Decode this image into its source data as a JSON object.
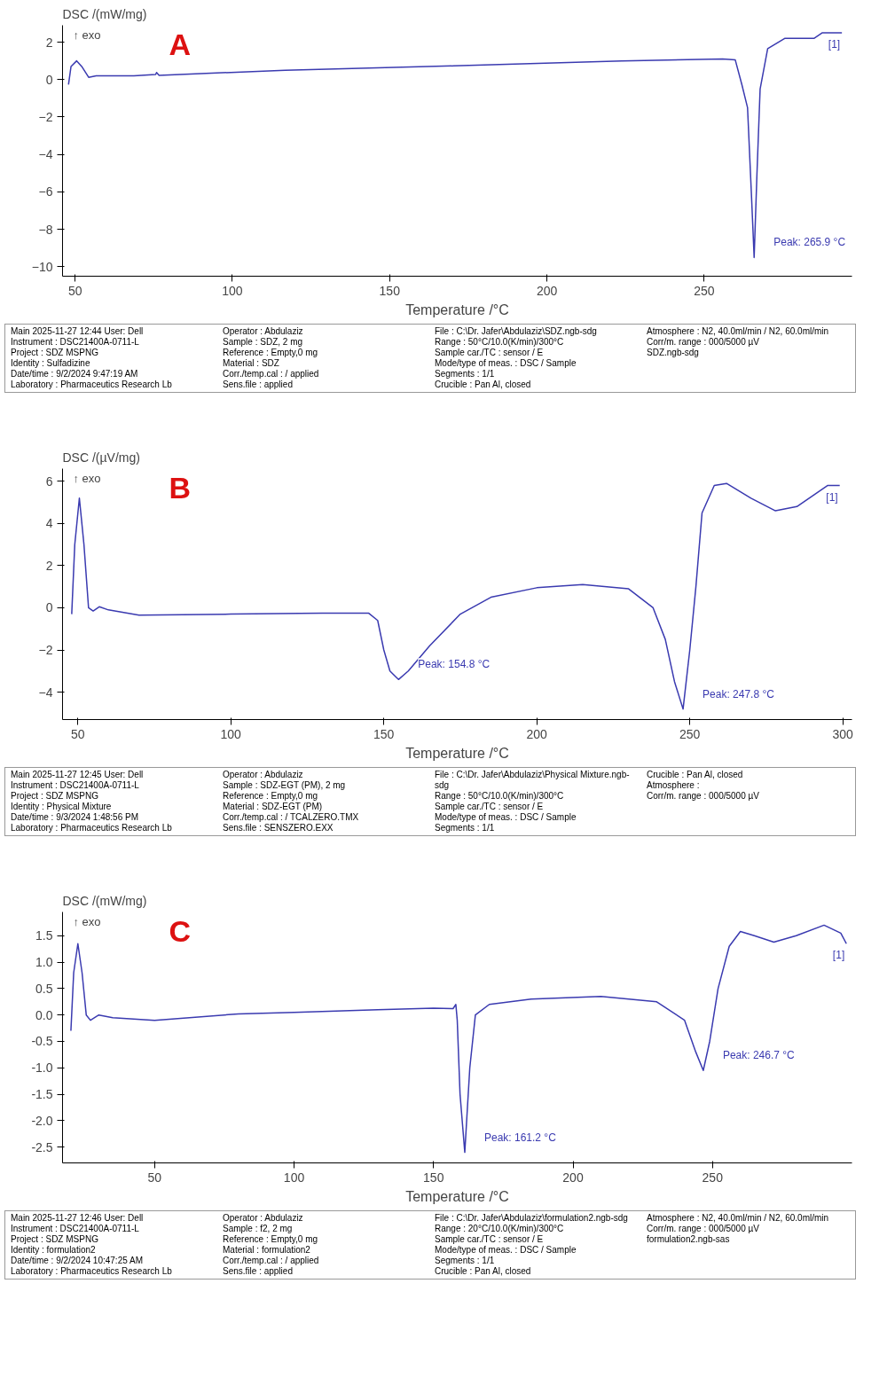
{
  "chart_data": [
    {
      "type": "line",
      "title": "A",
      "ylabel": "DSC /(mW/mg)",
      "xlabel": "Temperature /°C",
      "series": [
        {
          "color": "#3a3ab0",
          "x": [
            47.9,
            48.7,
            50.5,
            52.1,
            54.3,
            56.7,
            68.7,
            75.6,
            75.9,
            76.7,
            116.8,
            170.3,
            223.8,
            255.9,
            259.9,
            262.0,
            263.8,
            265.0,
            265.9,
            266.8,
            267.8,
            270.2,
            275.6,
            284.9,
            287.6,
            293.8
          ],
          "values": [
            -0.27,
            0.7,
            1.0,
            0.7,
            0.12,
            0.2,
            0.2,
            0.27,
            0.38,
            0.23,
            0.5,
            0.73,
            1.0,
            1.1,
            1.05,
            -0.27,
            -1.5,
            -6,
            -9.5,
            -5,
            -0.5,
            1.65,
            2.2,
            2.2,
            2.5,
            2.5
          ]
        }
      ],
      "xlim": [
        46,
        297
      ],
      "xticks": [
        50,
        100,
        150,
        200,
        250
      ],
      "ylim": [
        -10.5,
        2.9
      ],
      "yticks": [
        2,
        0,
        -2,
        -4,
        -6,
        -8,
        -10
      ],
      "grid": false,
      "annotations": [
        "↑ exo",
        {
          "text": "Peak: 265.9 °C",
          "x": 265.9,
          "y": -9.5
        },
        {
          "text": "[1]",
          "x": 293.8,
          "y": 2.5
        },
        "Main 2025-11-27 12:44 User: Dell",
        "Instrument : DSC21400A-0711-L",
        "Project : SDZ MSPNG",
        "Identity : Sulfadizine",
        "Date/time : 9/2/2024 9:47:19 AM",
        "Laboratory : Pharmaceutics Research Lb",
        "Operator : Abdulaziz",
        "Sample : SDZ, 2 mg",
        "Reference : Empty,0 mg",
        "Material : SDZ",
        "Corr./temp.cal : / applied",
        "Sens.file : applied",
        "File : C:\\Dr. Jafer\\Abdulaziz\\SDZ.ngb-sdg",
        "Range : 50°C/10.0(K/min)/300°C",
        "Sample car./TC : sensor / E",
        "Mode/type of meas. : DSC / Sample",
        "Segments : 1/1",
        "Crucible : Pan Al, closed",
        "Atmosphere : N2, 40.0ml/min / N2, 60.0ml/min",
        "Corr/m. range : 000/5000 µV",
        "SDZ.ngb-sdg"
      ]
    },
    {
      "type": "line",
      "title": "B",
      "ylabel": "DSC /(µV/mg)",
      "xlabel": "Temperature /°C",
      "series": [
        {
          "color": "#3a3ab0",
          "x": [
            48,
            49,
            50.5,
            52,
            53.5,
            55,
            57,
            60,
            70,
            100,
            130,
            145,
            148,
            150,
            152,
            154.8,
            158,
            165,
            175,
            185,
            200,
            215,
            230,
            238,
            242,
            245,
            247.8,
            250,
            252,
            254,
            258,
            262,
            270,
            278,
            285,
            295,
            299
          ],
          "values": [
            -0.3,
            3,
            5.2,
            3,
            0,
            -0.15,
            0.05,
            -0.1,
            -0.35,
            -0.3,
            -0.25,
            -0.25,
            -0.6,
            -2,
            -3,
            -3.4,
            -3,
            -1.8,
            -0.3,
            0.5,
            0.95,
            1.1,
            0.9,
            0,
            -1.5,
            -3.5,
            -4.8,
            -2,
            1,
            4.5,
            5.8,
            5.9,
            5.2,
            4.6,
            4.8,
            5.8,
            5.8
          ]
        }
      ],
      "xlim": [
        45,
        303
      ],
      "xticks": [
        50,
        100,
        150,
        200,
        250,
        300
      ],
      "ylim": [
        -5.3,
        6.6
      ],
      "yticks": [
        6,
        4,
        2,
        0,
        -2,
        -4
      ],
      "grid": false,
      "annotations": [
        "↑ exo",
        {
          "text": "Peak: 154.8 °C",
          "x": 154.8,
          "y": -3.4
        },
        {
          "text": "Peak: 247.8 °C",
          "x": 247.8,
          "y": -4.8
        },
        {
          "text": "[1]",
          "x": 299,
          "y": 5.8
        },
        "Main 2025-11-27 12:45 User: Dell",
        "Instrument : DSC21400A-0711-L",
        "Project : SDZ MSPNG",
        "Identity : Physical Mixture",
        "Date/time : 9/3/2024 1:48:56 PM",
        "Laboratory : Pharmaceutics Research Lb",
        "Operator : Abdulaziz",
        "Sample : SDZ-EGT (PM), 2 mg",
        "Reference : Empty,0 mg",
        "Material : SDZ-EGT (PM)",
        "Corr./temp.cal : / TCALZERO.TMX",
        "Sens.file : SENSZERO.EXX",
        "File : C:\\Dr. Jafer\\Abdulaziz\\Physical Mixture.ngb-sdg",
        "Range : 50°C/10.0(K/min)/300°C",
        "Sample car./TC : sensor / E",
        "Mode/type of meas. : DSC / Sample",
        "Segments : 1/1",
        "Crucible : Pan Al, closed",
        "Atmosphere :",
        "Corr/m. range : 000/5000 µV"
      ]
    },
    {
      "type": "line",
      "title": "C",
      "ylabel": "DSC /(mW/mg)",
      "xlabel": "Temperature /°C",
      "series": [
        {
          "color": "#3a3ab0",
          "x": [
            20,
            21,
            22.5,
            24,
            25.5,
            27,
            30,
            35,
            50,
            80,
            100,
            130,
            150,
            157,
            158,
            158.5,
            159.5,
            161.2,
            163,
            165,
            170,
            185,
            210,
            230,
            240,
            244,
            246.7,
            249,
            252,
            256,
            260,
            265,
            272,
            280,
            290,
            296,
            298
          ],
          "values": [
            -0.3,
            0.8,
            1.35,
            0.8,
            0,
            -0.1,
            0,
            -0.05,
            -0.1,
            0.02,
            0.05,
            0.1,
            0.13,
            0.12,
            0.2,
            -0.1,
            -1.5,
            -2.6,
            -1,
            0,
            0.2,
            0.3,
            0.35,
            0.25,
            -0.1,
            -0.7,
            -1.05,
            -0.5,
            0.5,
            1.3,
            1.58,
            1.5,
            1.38,
            1.5,
            1.7,
            1.55,
            1.35
          ]
        }
      ],
      "xlim": [
        17,
        300
      ],
      "xticks": [
        50,
        100,
        150,
        200,
        250
      ],
      "ylim": [
        -2.8,
        1.95
      ],
      "yticks": [
        {
          "value": 1.5,
          "label": "1.5"
        },
        {
          "value": 1,
          "label": "1.0"
        },
        {
          "value": 0.5,
          "label": "0.5"
        },
        {
          "value": 0,
          "label": "0.0"
        },
        {
          "value": -0.5,
          "label": "-0.5"
        },
        {
          "value": -1,
          "label": "-1.0"
        },
        {
          "value": -1.5,
          "label": "-1.5"
        },
        {
          "value": -2,
          "label": "-2.0"
        },
        {
          "value": -2.5,
          "label": "-2.5"
        }
      ],
      "grid": false,
      "annotations": [
        "↑ exo",
        {
          "text": "Peak: 161.2 °C",
          "x": 161.2,
          "y": -2.6
        },
        {
          "text": "Peak: 246.7 °C",
          "x": 246.7,
          "y": -1.05
        },
        {
          "text": "[1]",
          "x": 298,
          "y": 1.35
        },
        "Main 2025-11-27 12:46 User: Dell",
        "Instrument : DSC21400A-0711-L",
        "Project : SDZ MSPNG",
        "Identity : formulation2",
        "Date/time : 9/2/2024 10:47:25 AM",
        "Laboratory : Pharmaceutics Research Lb",
        "Operator : Abdulaziz",
        "Sample : f2, 2 mg",
        "Reference : Empty,0 mg",
        "Material : formulation2",
        "Corr./temp.cal : / applied",
        "Sens.file : applied",
        "File : C:\\Dr. Jafer\\Abdulaziz\\formulation2.ngb-sdg",
        "Range : 20°C/10.0(K/min)/300°C",
        "Sample car./TC : sensor / E",
        "Mode/type of meas. : DSC / Sample",
        "Segments : 1/1",
        "Crucible : Pan Al, closed",
        "Atmosphere : N2, 40.0ml/min / N2, 60.0ml/min",
        "Corr/m. range : 000/5000 µV",
        "formulation2.ngb-sas"
      ]
    }
  ]
}
